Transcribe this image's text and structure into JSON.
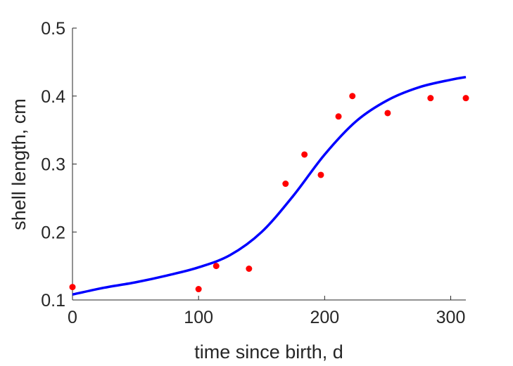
{
  "chart_data": {
    "type": "scatter",
    "xlabel": "time since birth, d",
    "ylabel": "shell length, cm",
    "xlim": [
      0,
      312
    ],
    "ylim": [
      0.1,
      0.5
    ],
    "xticks": [
      0,
      100,
      200,
      300
    ],
    "yticks": [
      0.1,
      0.2,
      0.3,
      0.4,
      0.5
    ],
    "xtick_labels": [
      "0",
      "100",
      "200",
      "300"
    ],
    "ytick_labels": [
      "0.1",
      "0.2",
      "0.3",
      "0.4",
      "0.5"
    ],
    "grid": false,
    "series": [
      {
        "kind": "points",
        "color": "#ff0000",
        "x": [
          0,
          100,
          114,
          140,
          169,
          184,
          197,
          211,
          222,
          250,
          284,
          312
        ],
        "y": [
          0.119,
          0.116,
          0.15,
          0.146,
          0.271,
          0.314,
          0.284,
          0.37,
          0.4,
          0.375,
          0.397,
          0.397
        ]
      },
      {
        "kind": "line",
        "color": "#0000ff",
        "x": [
          0,
          25,
          50,
          75,
          100,
          125,
          150,
          175,
          200,
          225,
          250,
          275,
          300,
          312
        ],
        "y": [
          0.108,
          0.118,
          0.126,
          0.136,
          0.148,
          0.166,
          0.2,
          0.253,
          0.314,
          0.363,
          0.394,
          0.413,
          0.424,
          0.428
        ]
      }
    ]
  }
}
